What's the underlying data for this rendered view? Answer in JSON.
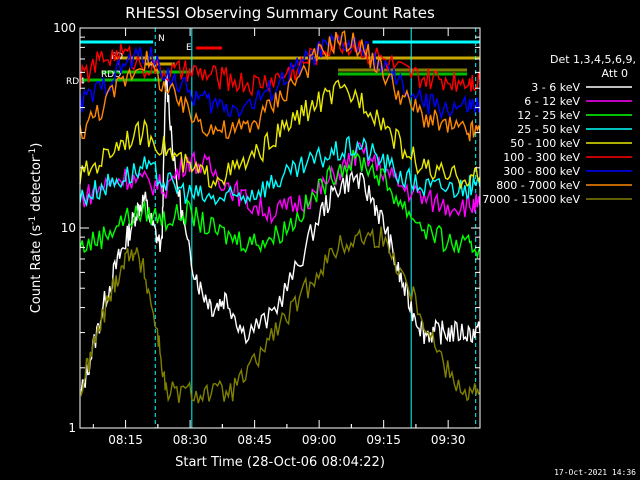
{
  "chart_data": {
    "type": "line",
    "title": "RHESSI Observing Summary Count Rates",
    "xlabel": "Start Time (28-Oct-06 08:04:22)",
    "ylabel_main": "Count Rate (s",
    "ylabel_sup": "-1",
    "ylabel_mid": " detector",
    "ylabel_end": ")",
    "yscale": "log",
    "ylim": [
      1,
      100
    ],
    "xlim_minutes": [
      0,
      34
    ],
    "x_ticks": [
      {
        "label": "08:15",
        "m": 10.6
      },
      {
        "label": "08:30",
        "m": 25.6
      },
      {
        "label": "08:45",
        "m": 40.6
      },
      {
        "label": "09:00",
        "m": 55.6
      },
      {
        "label": "09:15",
        "m": 70.6
      },
      {
        "label": "09:30",
        "m": 85.6
      }
    ],
    "y_ticks": [
      {
        "label": "1",
        "v": 1
      },
      {
        "label": "10",
        "v": 10
      },
      {
        "label": "100",
        "v": 100
      }
    ],
    "legend_header": [
      "Det 1,3,4,5,6,9,",
      "Att 0"
    ],
    "series": [
      {
        "name": "3 - 6 keV",
        "color": "#ffffff",
        "x": [
          0,
          3,
          6,
          9,
          11,
          13,
          15,
          17,
          19,
          20,
          22,
          25,
          28,
          31,
          34,
          38,
          44,
          50,
          56,
          60,
          64,
          68,
          71,
          74,
          77,
          80,
          83,
          86,
          90,
          93
        ],
        "y": [
          1.4,
          2.5,
          4.5,
          7,
          9,
          12,
          14,
          10,
          8,
          60,
          20,
          8,
          5,
          4,
          4.5,
          3,
          3.5,
          6,
          12,
          16,
          18,
          14,
          10,
          6,
          4,
          3,
          3,
          3,
          3,
          3
        ]
      },
      {
        "name": "6 - 12 keV",
        "color": "#ff00ff",
        "x": [
          0,
          5,
          10,
          15,
          20,
          25,
          30,
          35,
          40,
          45,
          50,
          55,
          60,
          65,
          70,
          75,
          80,
          85,
          90,
          93
        ],
        "y": [
          14,
          16,
          18,
          17,
          16,
          22,
          20,
          16,
          13,
          12,
          13,
          15,
          19,
          24,
          20,
          16,
          14,
          13,
          13,
          13
        ]
      },
      {
        "name": "12 - 25 keV",
        "color": "#00ff00",
        "x": [
          0,
          5,
          10,
          15,
          20,
          25,
          30,
          35,
          40,
          45,
          50,
          55,
          60,
          65,
          70,
          75,
          80,
          85,
          90,
          93
        ],
        "y": [
          8,
          9,
          11,
          12,
          11,
          12,
          10,
          9,
          8.5,
          9,
          11,
          15,
          20,
          22,
          18,
          13,
          10,
          8.5,
          8,
          8
        ]
      },
      {
        "name": "25 - 50 keV",
        "color": "#00ffff",
        "x": [
          0,
          5,
          10,
          15,
          20,
          25,
          30,
          35,
          40,
          45,
          50,
          55,
          60,
          65,
          70,
          75,
          80,
          85,
          90,
          93
        ],
        "y": [
          14,
          16,
          18,
          20,
          17,
          15,
          14,
          14,
          15,
          17,
          19,
          22,
          24,
          26,
          22,
          18,
          16,
          16,
          16,
          16
        ]
      },
      {
        "name": "50 - 100 keV",
        "color": "#e8e800",
        "x": [
          0,
          5,
          10,
          15,
          20,
          25,
          30,
          35,
          40,
          45,
          50,
          55,
          60,
          65,
          70,
          75,
          80,
          85,
          90,
          93
        ],
        "y": [
          18,
          22,
          28,
          30,
          25,
          20,
          18,
          19,
          22,
          28,
          35,
          42,
          48,
          45,
          35,
          25,
          20,
          18,
          18,
          18
        ]
      },
      {
        "name": "100 - 300 keV",
        "color": "#ff0000",
        "x": [
          0,
          5,
          10,
          15,
          20,
          25,
          30,
          35,
          40,
          45,
          50,
          55,
          60,
          65,
          70,
          75,
          80,
          85,
          90,
          93
        ],
        "y": [
          55,
          70,
          75,
          65,
          60,
          60,
          58,
          55,
          52,
          55,
          62,
          75,
          85,
          80,
          70,
          60,
          55,
          55,
          55,
          55
        ]
      },
      {
        "name": "300 - 800 keV",
        "color": "#0000ff",
        "x": [
          0,
          5,
          10,
          15,
          20,
          25,
          30,
          35,
          40,
          45,
          50,
          55,
          60,
          65,
          70,
          75,
          80,
          85,
          90,
          93
        ],
        "y": [
          42,
          50,
          65,
          75,
          60,
          48,
          42,
          40,
          42,
          50,
          62,
          75,
          85,
          80,
          65,
          50,
          42,
          40,
          40,
          40
        ]
      },
      {
        "name": "800 - 7000 keV",
        "color": "#ff8800",
        "x": [
          0,
          5,
          10,
          15,
          20,
          25,
          30,
          35,
          40,
          45,
          50,
          55,
          60,
          65,
          70,
          75,
          80,
          85,
          90,
          93
        ],
        "y": [
          30,
          40,
          55,
          70,
          50,
          38,
          32,
          30,
          33,
          42,
          55,
          72,
          88,
          82,
          62,
          45,
          36,
          32,
          30,
          30
        ]
      },
      {
        "name": "7000 - 15000 keV",
        "color": "#808000",
        "x": [
          0,
          3,
          6,
          9,
          12,
          15,
          18,
          20,
          25,
          30,
          35,
          40,
          45,
          50,
          55,
          60,
          65,
          70,
          75,
          80,
          85,
          90,
          93
        ],
        "y": [
          1.5,
          2.5,
          4,
          6,
          8,
          6,
          3,
          1.5,
          1.5,
          1.5,
          1.5,
          2,
          3,
          4,
          6,
          8,
          9,
          9,
          6,
          3.5,
          2,
          1.5,
          1.5
        ]
      }
    ],
    "flags": [
      {
        "label": "FD",
        "color": "#c8a800"
      },
      {
        "label": "RD4",
        "color": "#00bb00"
      },
      {
        "label": "RDO",
        "color": "#00bb00"
      },
      {
        "label": "N",
        "color": "#00ffff"
      },
      {
        "label": "E",
        "color": "#ff0000"
      },
      {
        "label": "C",
        "color": "#c8a800"
      }
    ],
    "grid": false,
    "legend_position": "right"
  },
  "timestamp": "17-Oct-2021 14:36"
}
